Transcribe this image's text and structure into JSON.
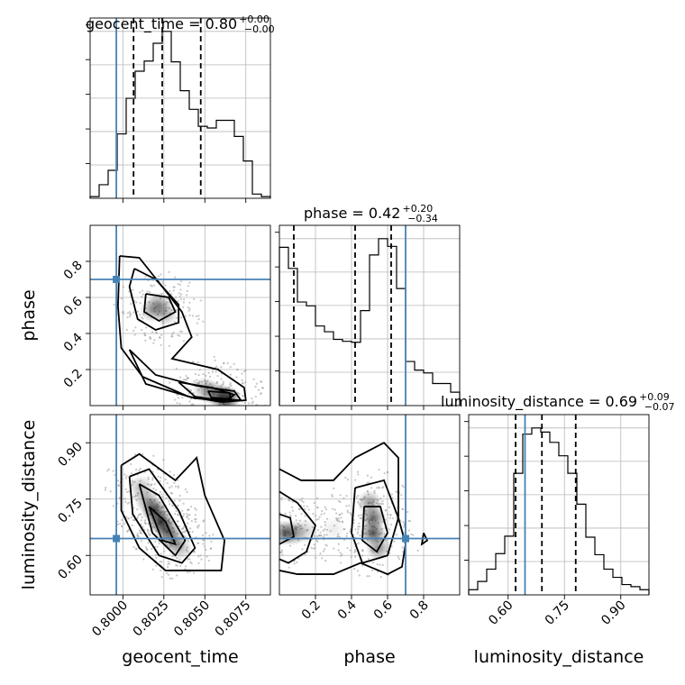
{
  "figure": {
    "colors": {
      "truth": "#4682b4",
      "grid": "#b8b8b8",
      "ink": "#000000"
    }
  },
  "chart_data": {
    "type": "corner",
    "parameters": [
      "geocent_time",
      "phase",
      "luminosity_distance"
    ],
    "truths": {
      "geocent_time": 0.7996,
      "phase": 0.7,
      "luminosity_distance": 0.645
    },
    "titles": [
      {
        "parameter": "geocent_time",
        "text": "geocent_time = 0.80",
        "sup": "+0.00",
        "sub": "−0.00"
      },
      {
        "parameter": "phase",
        "text": "phase = 0.42",
        "sup": "+0.20",
        "sub": "−0.34"
      },
      {
        "parameter": "luminosity_distance",
        "text": "luminosity_distance = 0.69",
        "sup": "+0.09",
        "sub": "−0.07"
      }
    ],
    "axis_labels": {
      "geocent_time": "geocent_time",
      "phase": "phase",
      "luminosity_distance": "luminosity_distance"
    },
    "ranges": {
      "geocent_time": [
        0.798,
        0.809
      ],
      "phase": [
        0.0,
        1.0
      ],
      "luminosity_distance": [
        0.495,
        0.975
      ]
    },
    "ticks": {
      "geocent_time": [
        "0.8000",
        "0.8025",
        "0.8050",
        "0.8075"
      ],
      "phase": [
        "0.2",
        "0.4",
        "0.6",
        "0.8"
      ],
      "luminosity_distance": [
        "0.60",
        "0.75",
        "0.90"
      ]
    },
    "histograms": {
      "geocent_time": {
        "edges": [
          0.798,
          0.79855,
          0.7991,
          0.79965,
          0.8002,
          0.80075,
          0.8013,
          0.80185,
          0.8024,
          0.80295,
          0.8035,
          0.80405,
          0.8046,
          0.80515,
          0.8057,
          0.80625,
          0.8068,
          0.80735,
          0.8079,
          0.80845,
          0.809
        ],
        "counts": [
          2,
          16,
          33,
          76,
          118,
          150,
          162,
          183,
          197,
          161,
          127,
          105,
          85,
          83,
          92,
          92,
          73,
          44,
          5,
          2
        ],
        "quantiles": [
          0.80065,
          0.8024,
          0.80475
        ]
      },
      "phase": {
        "edges": [
          0.0,
          0.05,
          0.1,
          0.15,
          0.2,
          0.25,
          0.3,
          0.35,
          0.4,
          0.45,
          0.5,
          0.55,
          0.6,
          0.65,
          0.7,
          0.75,
          0.8,
          0.85,
          0.9,
          0.95,
          1.0
        ],
        "counts": [
          165,
          143,
          108,
          104,
          83,
          77,
          69,
          67,
          66,
          99,
          157,
          174,
          166,
          122,
          46,
          37,
          34,
          23,
          23,
          14
        ],
        "quantiles": [
          0.08,
          0.42,
          0.62
        ]
      },
      "luminosity_distance": {
        "edges": [
          0.495,
          0.519,
          0.543,
          0.567,
          0.591,
          0.615,
          0.639,
          0.663,
          0.687,
          0.711,
          0.735,
          0.759,
          0.783,
          0.807,
          0.831,
          0.855,
          0.879,
          0.903,
          0.927,
          0.951,
          0.975
        ],
        "counts": [
          5,
          13,
          25,
          40,
          57,
          118,
          156,
          162,
          158,
          148,
          135,
          118,
          88,
          56,
          39,
          25,
          17,
          10,
          8,
          5
        ],
        "quantiles": [
          0.62,
          0.69,
          0.78
        ]
      }
    },
    "panels_2d": [
      {
        "x": "geocent_time",
        "y": "phase",
        "density": [
          {
            "x": 0.8018,
            "y": 0.53,
            "level": 0.45
          },
          {
            "x": 0.8022,
            "y": 0.56,
            "level": 0.5
          },
          {
            "x": 0.8026,
            "y": 0.51,
            "level": 0.4
          },
          {
            "x": 0.805,
            "y": 0.09,
            "level": 0.4
          },
          {
            "x": 0.8055,
            "y": 0.07,
            "level": 0.55
          },
          {
            "x": 0.806,
            "y": 0.05,
            "level": 0.75
          },
          {
            "x": 0.8064,
            "y": 0.04,
            "level": 0.95
          }
        ],
        "contours": [
          [
            [
              0.7998,
              0.83
            ],
            [
              0.801,
              0.82
            ],
            [
              0.8024,
              0.66
            ],
            [
              0.8036,
              0.52
            ],
            [
              0.8042,
              0.38
            ],
            [
              0.803,
              0.26
            ],
            [
              0.8058,
              0.2
            ],
            [
              0.8074,
              0.1
            ],
            [
              0.8075,
              0.03
            ],
            [
              0.806,
              0.02
            ],
            [
              0.804,
              0.05
            ],
            [
              0.8012,
              0.16
            ],
            [
              0.7999,
              0.32
            ],
            [
              0.7997,
              0.55
            ],
            [
              0.7998,
              0.83
            ]
          ],
          [
            [
              0.8007,
              0.76
            ],
            [
              0.802,
              0.7
            ],
            [
              0.8034,
              0.56
            ],
            [
              0.8034,
              0.46
            ],
            [
              0.802,
              0.42
            ],
            [
              0.8009,
              0.48
            ],
            [
              0.8004,
              0.66
            ],
            [
              0.8007,
              0.76
            ]
          ],
          [
            [
              0.8014,
              0.62
            ],
            [
              0.8028,
              0.6
            ],
            [
              0.8032,
              0.52
            ],
            [
              0.8022,
              0.47
            ],
            [
              0.8013,
              0.52
            ],
            [
              0.8014,
              0.62
            ]
          ],
          [
            [
              0.8004,
              0.31
            ],
            [
              0.802,
              0.17
            ],
            [
              0.8045,
              0.11
            ],
            [
              0.8068,
              0.08
            ],
            [
              0.8072,
              0.03
            ],
            [
              0.8044,
              0.04
            ],
            [
              0.8014,
              0.12
            ],
            [
              0.8004,
              0.31
            ]
          ],
          [
            [
              0.8034,
              0.13
            ],
            [
              0.8054,
              0.1
            ],
            [
              0.8068,
              0.06
            ],
            [
              0.8062,
              0.025
            ],
            [
              0.8044,
              0.05
            ],
            [
              0.8034,
              0.13
            ]
          ],
          [
            [
              0.8052,
              0.08
            ],
            [
              0.8065,
              0.07
            ],
            [
              0.8066,
              0.035
            ],
            [
              0.8054,
              0.045
            ],
            [
              0.8052,
              0.08
            ]
          ]
        ]
      },
      {
        "x": "geocent_time",
        "y": "luminosity_distance",
        "density": [
          {
            "x": 0.8011,
            "y": 0.78,
            "level": 0.35
          },
          {
            "x": 0.8015,
            "y": 0.745,
            "level": 0.5
          },
          {
            "x": 0.8019,
            "y": 0.72,
            "level": 0.95
          },
          {
            "x": 0.8023,
            "y": 0.69,
            "level": 1.0
          },
          {
            "x": 0.8027,
            "y": 0.665,
            "level": 0.8
          },
          {
            "x": 0.8031,
            "y": 0.64,
            "level": 0.55
          },
          {
            "x": 0.8035,
            "y": 0.62,
            "level": 0.35
          }
        ],
        "contours": [
          [
            [
              0.7999,
              0.84
            ],
            [
              0.801,
              0.87
            ],
            [
              0.8032,
              0.8
            ],
            [
              0.8045,
              0.86
            ],
            [
              0.805,
              0.76
            ],
            [
              0.8062,
              0.64
            ],
            [
              0.806,
              0.56
            ],
            [
              0.804,
              0.56
            ],
            [
              0.8026,
              0.56
            ],
            [
              0.801,
              0.62
            ],
            [
              0.7999,
              0.72
            ],
            [
              0.7999,
              0.84
            ]
          ],
          [
            [
              0.8004,
              0.81
            ],
            [
              0.8016,
              0.83
            ],
            [
              0.8034,
              0.72
            ],
            [
              0.8044,
              0.62
            ],
            [
              0.8036,
              0.58
            ],
            [
              0.8022,
              0.6
            ],
            [
              0.8006,
              0.71
            ],
            [
              0.8004,
              0.81
            ]
          ],
          [
            [
              0.801,
              0.79
            ],
            [
              0.8022,
              0.76
            ],
            [
              0.8038,
              0.64
            ],
            [
              0.8032,
              0.6
            ],
            [
              0.8018,
              0.66
            ],
            [
              0.801,
              0.79
            ]
          ],
          [
            [
              0.8016,
              0.73
            ],
            [
              0.8026,
              0.69
            ],
            [
              0.8032,
              0.63
            ],
            [
              0.8024,
              0.64
            ],
            [
              0.8016,
              0.73
            ]
          ]
        ]
      },
      {
        "x": "phase",
        "y": "luminosity_distance",
        "density": [
          {
            "x": 0.03,
            "y": 0.66,
            "level": 0.75
          },
          {
            "x": 0.08,
            "y": 0.66,
            "level": 0.55
          },
          {
            "x": 0.14,
            "y": 0.665,
            "level": 0.25
          },
          {
            "x": 0.3,
            "y": 0.67,
            "level": 0.1
          },
          {
            "x": 0.5,
            "y": 0.74,
            "level": 0.5
          },
          {
            "x": 0.52,
            "y": 0.7,
            "level": 0.75
          },
          {
            "x": 0.52,
            "y": 0.66,
            "level": 0.85
          },
          {
            "x": 0.55,
            "y": 0.62,
            "level": 0.55
          }
        ],
        "contours": [
          [
            [
              0.0,
              0.83
            ],
            [
              0.12,
              0.8
            ],
            [
              0.3,
              0.8
            ],
            [
              0.42,
              0.86
            ],
            [
              0.58,
              0.9
            ],
            [
              0.66,
              0.86
            ],
            [
              0.66,
              0.7
            ],
            [
              0.7,
              0.63
            ],
            [
              0.68,
              0.57
            ],
            [
              0.6,
              0.55
            ],
            [
              0.45,
              0.58
            ],
            [
              0.3,
              0.55
            ],
            [
              0.1,
              0.55
            ],
            [
              0.0,
              0.56
            ]
          ],
          [
            [
              0.0,
              0.77
            ],
            [
              0.1,
              0.74
            ],
            [
              0.2,
              0.68
            ],
            [
              0.15,
              0.61
            ],
            [
              0.05,
              0.58
            ],
            [
              0.0,
              0.59
            ]
          ],
          [
            [
              0.42,
              0.78
            ],
            [
              0.58,
              0.8
            ],
            [
              0.66,
              0.7
            ],
            [
              0.6,
              0.6
            ],
            [
              0.46,
              0.58
            ],
            [
              0.4,
              0.66
            ],
            [
              0.42,
              0.78
            ]
          ],
          [
            [
              0.0,
              0.71
            ],
            [
              0.06,
              0.7
            ],
            [
              0.08,
              0.65
            ],
            [
              0.0,
              0.63
            ]
          ],
          [
            [
              0.47,
              0.73
            ],
            [
              0.56,
              0.73
            ],
            [
              0.6,
              0.66
            ],
            [
              0.54,
              0.61
            ],
            [
              0.46,
              0.64
            ],
            [
              0.47,
              0.73
            ]
          ],
          [
            [
              0.8,
              0.66
            ],
            [
              0.82,
              0.64
            ],
            [
              0.79,
              0.63
            ],
            [
              0.8,
              0.66
            ]
          ]
        ]
      }
    ],
    "grid": true
  }
}
